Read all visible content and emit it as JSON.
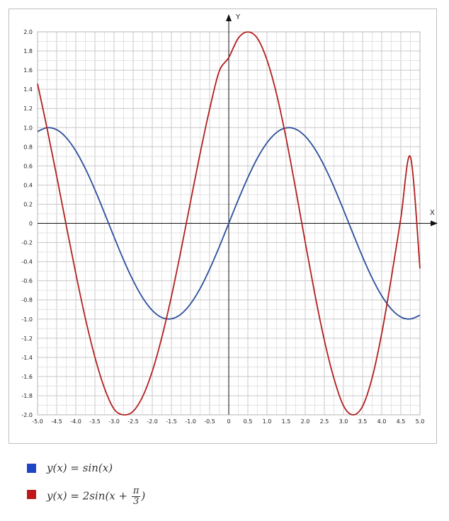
{
  "chart_data": {
    "type": "line",
    "xlabel": "X",
    "ylabel": "Y",
    "xlim": [
      -5.0,
      5.0
    ],
    "ylim": [
      -2.0,
      2.0
    ],
    "grid": true,
    "x_ticks": [
      "-5.0",
      "-4.5",
      "-4.0",
      "-3.5",
      "-3.0",
      "-2.5",
      "-2.0",
      "-1.5",
      "-1.0",
      "-0.5",
      "0",
      "0.5",
      "1.0",
      "1.5",
      "2.0",
      "2.5",
      "3.0",
      "3.5",
      "4.0",
      "4.5",
      "5.0"
    ],
    "y_ticks": [
      "-2.0",
      "-1.8",
      "-1.6",
      "-1.4",
      "-1.2",
      "-1.0",
      "-0.8",
      "-0.6",
      "-0.4",
      "-0.2",
      "0",
      "0.2",
      "0.4",
      "0.6",
      "0.8",
      "1.0",
      "1.2",
      "1.4",
      "1.6",
      "1.8",
      "2.0"
    ],
    "series": [
      {
        "color": "#2b4f9c",
        "x": [
          -5.0,
          -4.75,
          -4.5,
          -4.25,
          -4.0,
          -3.75,
          -3.5,
          -3.25,
          -3.0,
          -2.75,
          -2.5,
          -2.25,
          -2.0,
          -1.75,
          -1.5,
          -1.25,
          -1.0,
          -0.75,
          -0.5,
          -0.25,
          0.0,
          0.25,
          0.5,
          0.75,
          1.0,
          1.25,
          1.5,
          1.75,
          2.0,
          2.25,
          2.5,
          2.75,
          3.0,
          3.25,
          3.5,
          3.75,
          4.0,
          4.25,
          4.5,
          4.75,
          5.0
        ],
        "y": [
          0.959,
          0.999,
          0.978,
          0.895,
          0.757,
          0.572,
          0.351,
          0.108,
          -0.141,
          -0.382,
          -0.598,
          -0.778,
          -0.909,
          -0.984,
          -0.997,
          -0.949,
          -0.841,
          -0.682,
          -0.479,
          -0.247,
          0.0,
          0.247,
          0.479,
          0.682,
          0.841,
          0.949,
          0.997,
          0.984,
          0.909,
          0.778,
          0.598,
          0.382,
          0.141,
          -0.108,
          -0.351,
          -0.572,
          -0.757,
          -0.895,
          -0.978,
          -0.999,
          -0.959
        ]
      },
      {
        "color": "#b21e1e",
        "x": [
          -5.0,
          -4.75,
          -4.5,
          -4.25,
          -4.0,
          -3.75,
          -3.5,
          -3.25,
          -3.0,
          -2.75,
          -2.5,
          -2.25,
          -2.0,
          -1.75,
          -1.5,
          -1.25,
          -1.0,
          -0.75,
          -0.5,
          -0.25,
          0.0,
          0.25,
          0.5,
          0.75,
          1.0,
          1.25,
          1.5,
          1.75,
          2.0,
          2.25,
          2.5,
          2.75,
          3.0,
          3.25,
          3.5,
          3.75,
          4.0,
          4.25,
          4.5,
          4.75,
          5.0
        ],
        "y": [
          1.458,
          0.99,
          0.494,
          -0.02,
          -0.523,
          -0.991,
          -1.397,
          -1.721,
          -1.939,
          -2.0,
          -1.963,
          -1.808,
          -1.546,
          -1.191,
          -0.765,
          -0.284,
          0.225,
          0.728,
          1.192,
          1.587,
          1.732,
          1.934,
          1.999,
          1.932,
          1.706,
          1.351,
          0.889,
          0.357,
          -0.197,
          -0.737,
          -1.221,
          -1.619,
          -1.905,
          -2.0,
          -1.91,
          -1.613,
          -1.15,
          -0.573,
          0.055,
          0.695,
          -0.471
        ]
      }
    ],
    "legend": [
      {
        "color": "#1f45c4",
        "formula_lhs": "y(x) = sin(x)"
      },
      {
        "color": "#c01818",
        "formula_lhs": "y(x) = 2sin(x + ",
        "frac_num": "π",
        "frac_den": "3",
        "formula_rhs": ")"
      }
    ]
  }
}
